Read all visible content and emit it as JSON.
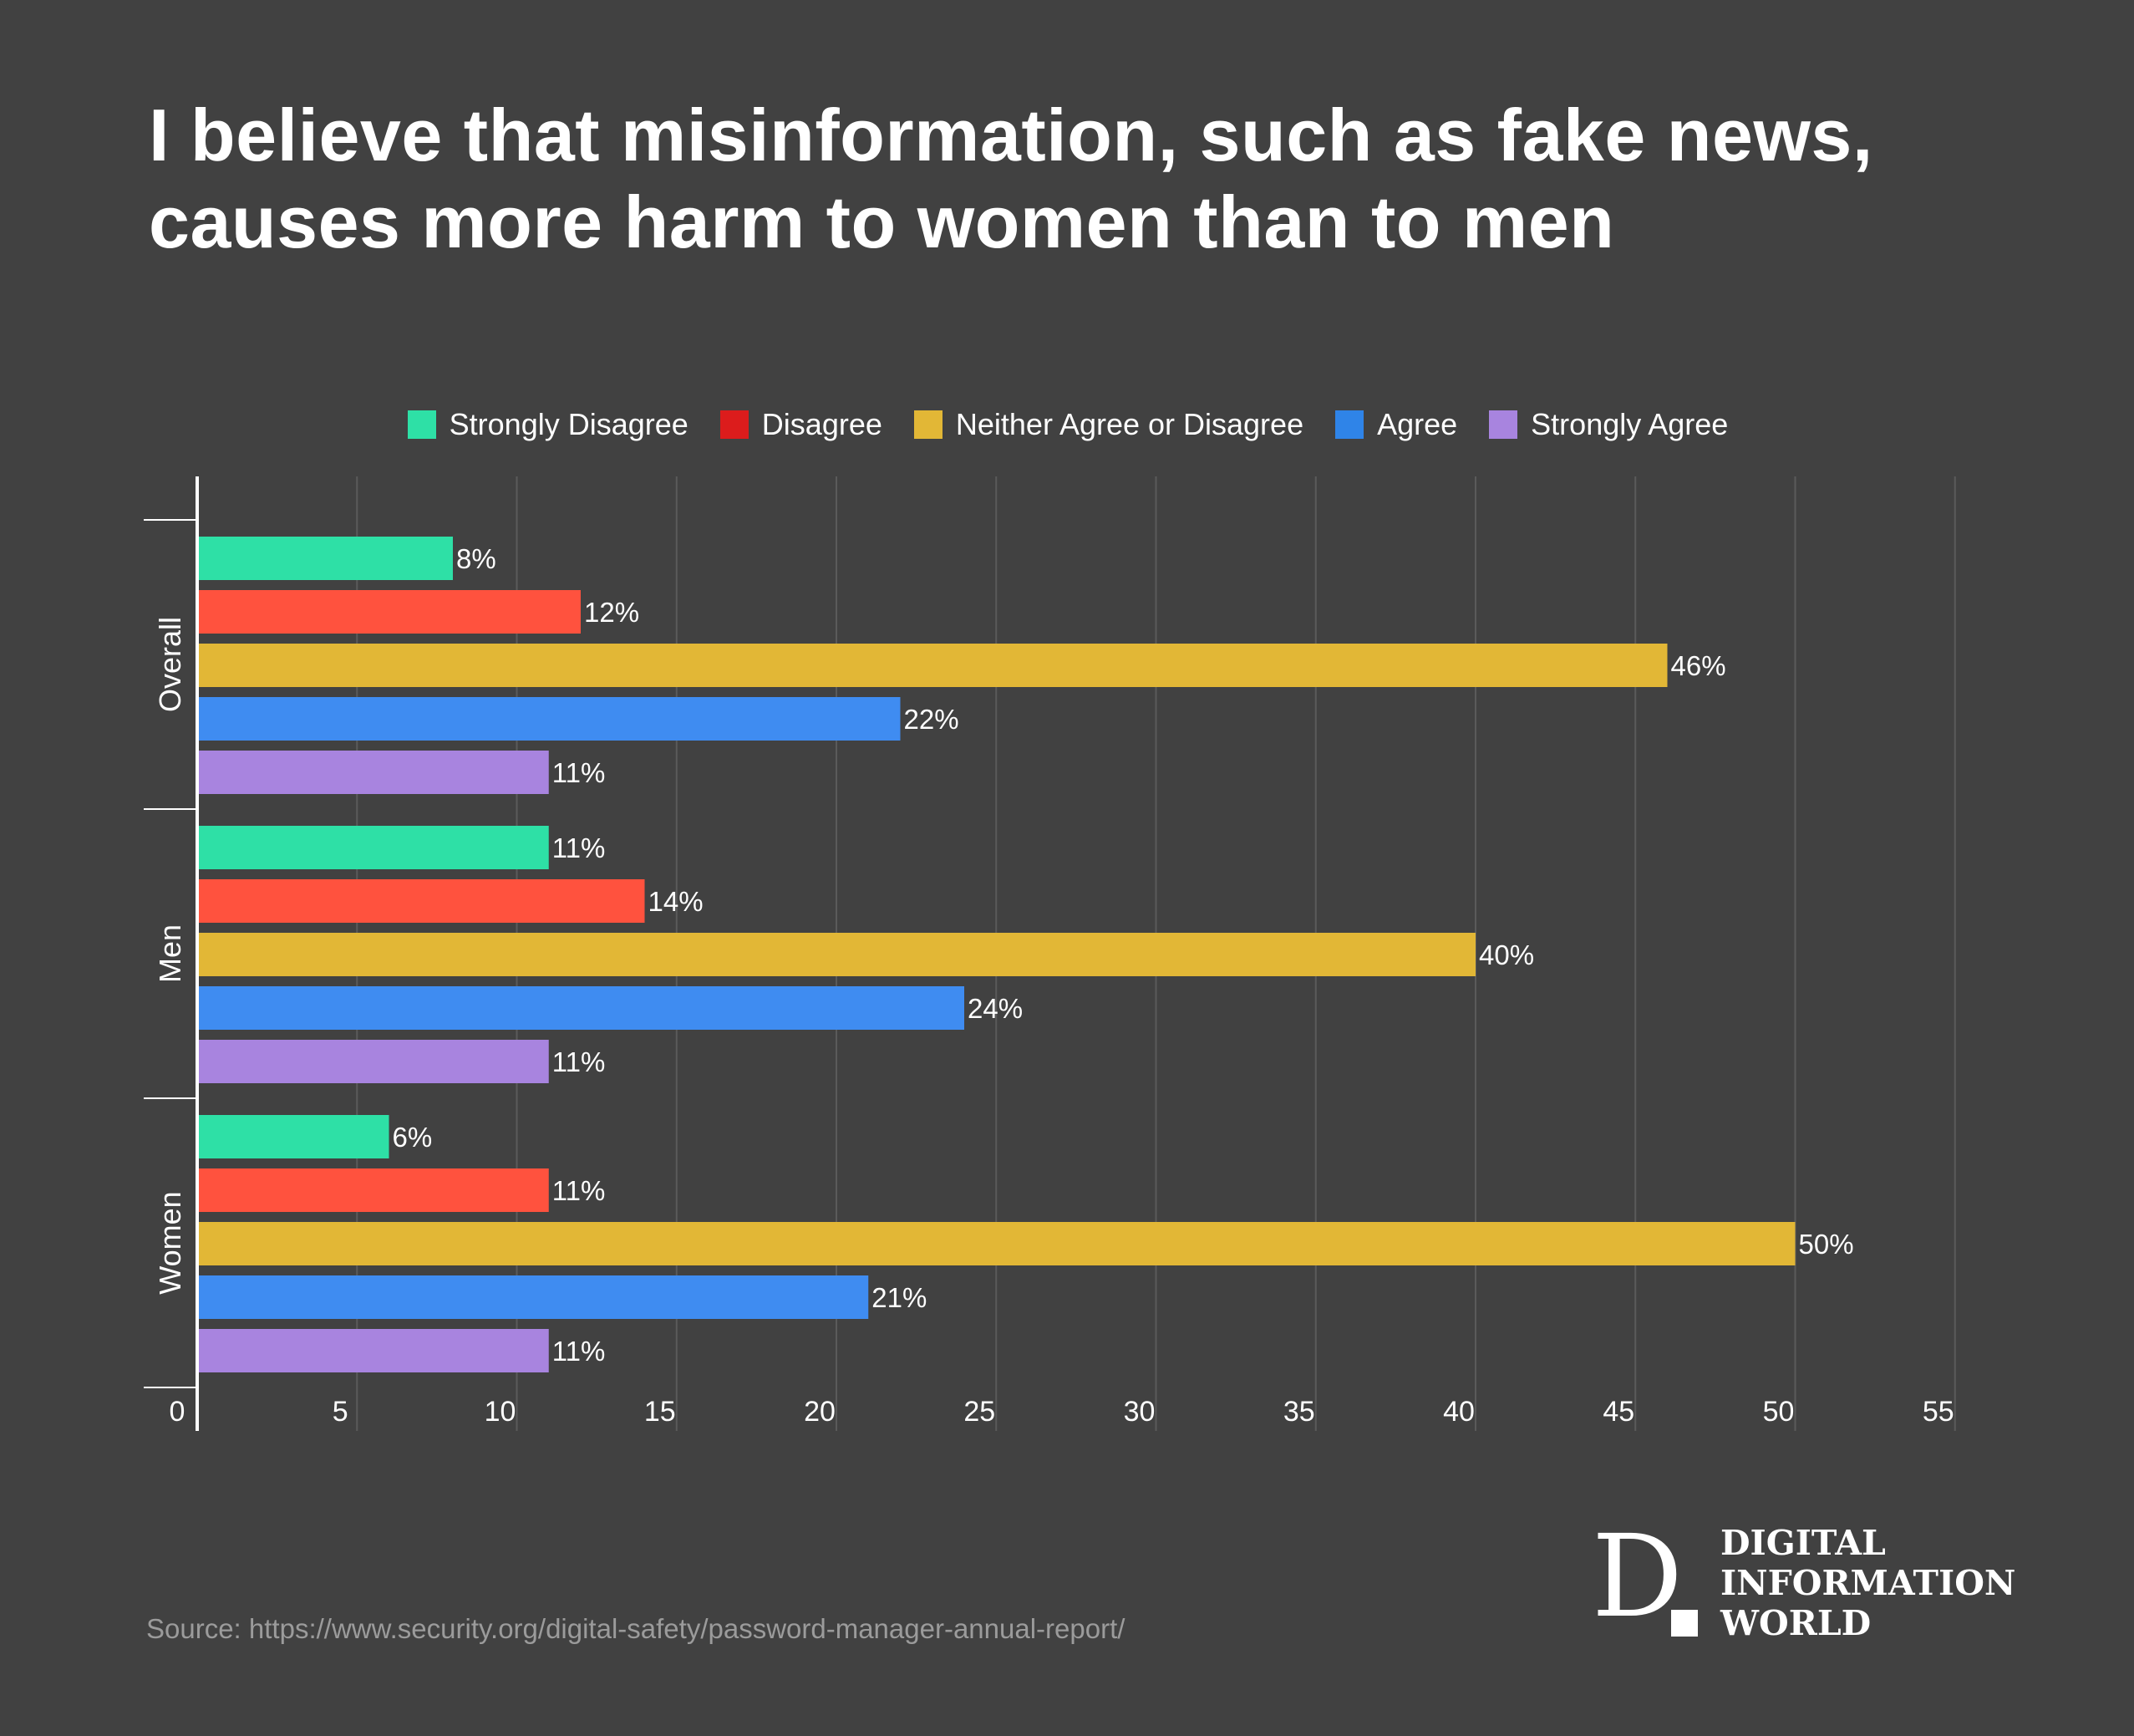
{
  "title": {
    "line1": "I believe that misinformation, such as fake news,",
    "line2": "causes more harm to women than to men"
  },
  "legend": [
    {
      "label": "Strongly Disagree",
      "color": "#2ee0a6"
    },
    {
      "label": "Disagree",
      "color": "#dc1c1c"
    },
    {
      "label": "Neither Agree or Disagree",
      "color": "#e2b736"
    },
    {
      "label": "Agree",
      "color": "#2f84e8"
    },
    {
      "label": "Strongly Agree",
      "color": "#a884df"
    }
  ],
  "chart_data": {
    "type": "bar",
    "orientation": "horizontal",
    "categories": [
      "Overall",
      "Men",
      "Women"
    ],
    "series": [
      {
        "name": "Strongly Disagree",
        "color": "#2ee0a6",
        "values": [
          8,
          11,
          6
        ],
        "labels": [
          "8%",
          "11%",
          "6%"
        ]
      },
      {
        "name": "Disagree",
        "color": "#ff523e",
        "values": [
          12,
          14,
          11
        ],
        "labels": [
          "12%",
          "14%",
          "11%"
        ]
      },
      {
        "name": "Neither Agree or Disagree",
        "color": "#e2b736",
        "values": [
          46,
          40,
          50
        ],
        "labels": [
          "46%",
          "40%",
          "50%"
        ]
      },
      {
        "name": "Agree",
        "color": "#3f8cf1",
        "values": [
          22,
          24,
          21
        ],
        "labels": [
          "22%",
          "24%",
          "21%"
        ]
      },
      {
        "name": "Strongly Agree",
        "color": "#a884df",
        "values": [
          11,
          11,
          11
        ],
        "labels": [
          "11%",
          "11%",
          "11%"
        ]
      }
    ],
    "xticks": [
      0,
      5,
      10,
      15,
      20,
      25,
      30,
      35,
      40,
      45,
      50,
      55
    ],
    "xlim": [
      0,
      55
    ],
    "xlabel": "",
    "ylabel": "",
    "grid": true,
    "legend_position": "top"
  },
  "source": "Source: https://www.security.org/digital-safety/password-manager-annual-report/",
  "logo": {
    "mark": "D",
    "line1": "DIGITAL",
    "line2": "INFORMATION",
    "line3": "WORLD"
  }
}
